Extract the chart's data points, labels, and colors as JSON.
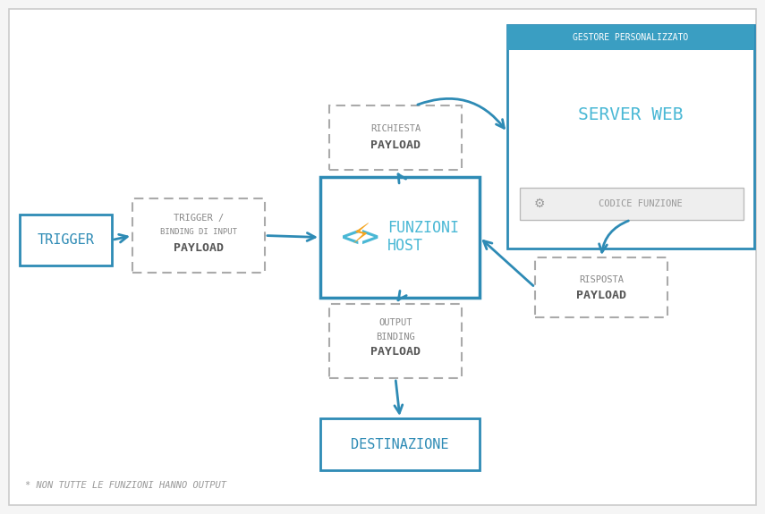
{
  "bg_color": "#f5f5f5",
  "blue": "#2e8bb5",
  "blue_light": "#4ab8d5",
  "blue_header": "#3a9ec2",
  "gray_border": "#aaaaaa",
  "gray_text": "#888888",
  "gray_text_dark": "#555555",
  "orange": "#f5a623",
  "white": "#ffffff",
  "outer_border": "#cccccc",
  "title_text": "GESTORE PERSONALIZZATO",
  "server_web_text": "SERVER WEB",
  "codice_funzione_text": "CODICE FUNZIONE",
  "trigger_text": "TRIGGER",
  "destinazione_text": "DESTINAZIONE",
  "richiesta_line1": "RICHIESTA",
  "richiesta_line2": "PAYLOAD",
  "risposta_line1": "RISPOSTA",
  "risposta_line2": "PAYLOAD",
  "trigger_binding_line1": "TRIGGER /",
  "trigger_binding_line2": "BINDING DI INPUT",
  "trigger_binding_line3": "PAYLOAD",
  "output_line1": "OUTPUT",
  "output_line2": "BINDING",
  "output_line3": "PAYLOAD",
  "funzioni_line1": "FUNZIONI",
  "funzioni_line2": "HOST",
  "footnote": "* NON TUTTE LE FUNZIONI HANNO OUTPUT",
  "cf_bg": "#eeeeee",
  "cf_border": "#bbbbbb"
}
